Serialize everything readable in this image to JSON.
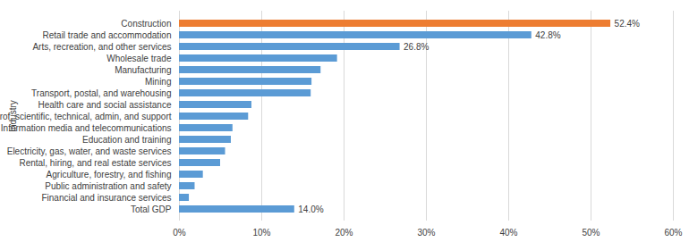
{
  "chart_data": {
    "type": "bar",
    "orientation": "horizontal",
    "ylabel": "Industry",
    "categories": [
      "Construction",
      "Retail trade and accommodation",
      "Arts, recreation, and other services",
      "Wholesale trade",
      "Manufacturing",
      "Mining",
      "Transport, postal, and warehousing",
      "Health care and social assistance",
      "Prof, scientific, technical, admin, and support",
      "Information media and telecommunications",
      "Education and training",
      "Electricity, gas, water, and waste services",
      "Rental, hiring, and real estate services",
      "Agriculture, forestry, and fishing",
      "Public administration and safety",
      "Financial and insurance services",
      "Total GDP"
    ],
    "values": [
      52.4,
      42.8,
      26.8,
      19.2,
      17.2,
      16.1,
      16.0,
      8.8,
      8.4,
      6.5,
      6.3,
      5.6,
      5.0,
      2.9,
      1.9,
      1.2,
      14.0
    ],
    "value_labels": [
      "52.4%",
      "42.8%",
      "26.8%",
      null,
      null,
      null,
      null,
      null,
      null,
      null,
      null,
      null,
      null,
      null,
      null,
      null,
      "14.0%"
    ],
    "colors": [
      "#ed7d31",
      "#5b9bd5",
      "#5b9bd5",
      "#5b9bd5",
      "#5b9bd5",
      "#5b9bd5",
      "#5b9bd5",
      "#5b9bd5",
      "#5b9bd5",
      "#5b9bd5",
      "#5b9bd5",
      "#5b9bd5",
      "#5b9bd5",
      "#5b9bd5",
      "#5b9bd5",
      "#5b9bd5",
      "#5b9bd5"
    ],
    "xlim": [
      0,
      60
    ],
    "xticks": [
      {
        "value": 0,
        "label": "0%"
      },
      {
        "value": 10,
        "label": "10%"
      },
      {
        "value": 20,
        "label": "20%"
      },
      {
        "value": 30,
        "label": "30%"
      },
      {
        "value": 40,
        "label": "40%"
      },
      {
        "value": 50,
        "label": "50%"
      },
      {
        "value": 60,
        "label": "60%"
      }
    ],
    "grid": true,
    "data_labels": true
  }
}
